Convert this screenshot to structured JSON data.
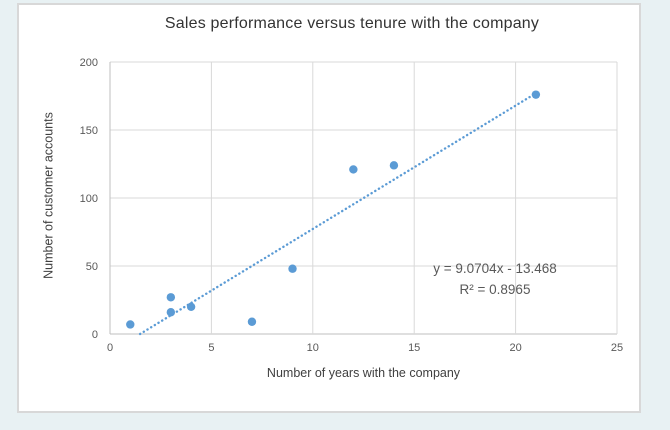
{
  "page": {
    "background_color": "#e8f1f3"
  },
  "chart": {
    "colors": {
      "marker": "#5b9bd5",
      "trendline": "#5b9bd5",
      "gridline": "#d9d9d9",
      "axis_line": "#bfbfbf",
      "tick_text": "#595959",
      "title_text": "#333333",
      "axis_title_text": "#3f3f3f",
      "equation_text": "#595959",
      "chart_background": "#ffffff",
      "chart_border": "#d8d8d8"
    }
  },
  "chart_data": {
    "type": "scatter",
    "title": "Sales performance versus tenure with the company",
    "xlabel": "Number of years with the company",
    "ylabel": "Number of customer accounts",
    "points": [
      {
        "x": 1,
        "y": 7
      },
      {
        "x": 3,
        "y": 16
      },
      {
        "x": 3,
        "y": 27
      },
      {
        "x": 4,
        "y": 20
      },
      {
        "x": 7,
        "y": 9
      },
      {
        "x": 9,
        "y": 48
      },
      {
        "x": 12,
        "y": 121
      },
      {
        "x": 14,
        "y": 124
      },
      {
        "x": 21,
        "y": 176
      }
    ],
    "xlim": [
      0,
      25
    ],
    "ylim": [
      0,
      200
    ],
    "xticks": [
      0,
      5,
      10,
      15,
      20,
      25
    ],
    "yticks": [
      0,
      50,
      100,
      150,
      200
    ],
    "grid": true,
    "legend": "none",
    "trendline": {
      "type": "linear",
      "line_style": "dotted",
      "slope": 9.0704,
      "intercept": -13.468,
      "r_squared": 0.8965,
      "x_start": 1.485,
      "x_end": 21,
      "label_lines": [
        "y = 9.0704x - 13.468",
        "R² = 0.8965"
      ]
    }
  }
}
